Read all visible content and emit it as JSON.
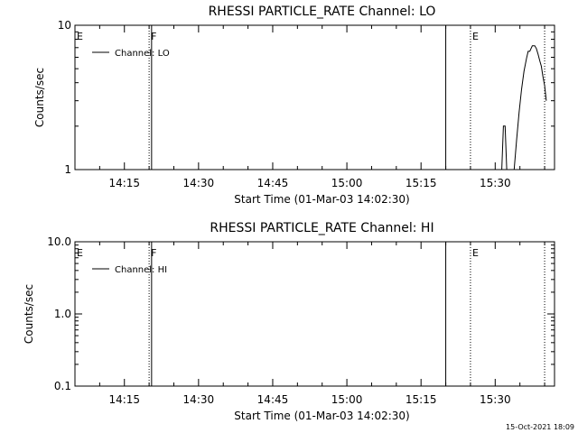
{
  "chart_data": [
    {
      "type": "line",
      "title": "RHESSI PARTICLE_RATE Channel: LO",
      "xlabel": "Start Time (01-Mar-03 14:02:30)",
      "ylabel": "Counts/sec",
      "y_scale": "log",
      "ylim": [
        1,
        10
      ],
      "y_ticks": [
        {
          "value": 1,
          "label": "1"
        },
        {
          "value": 10,
          "label": "10"
        }
      ],
      "xlim": [
        "14:05",
        "15:42"
      ],
      "x_ticks": [
        "14:15",
        "14:30",
        "14:45",
        "15:00",
        "15:15",
        "15:30"
      ],
      "legend": {
        "placement": "top-left",
        "label": "Channel: LO"
      },
      "series": [
        {
          "name": "Channel: LO",
          "x": [
            "15:31:00",
            "15:31:20",
            "15:31:40",
            "15:32:00",
            "15:32:20",
            "15:32:40",
            "15:33:30",
            "15:33:50",
            "15:34:20",
            "15:34:50",
            "15:35:20",
            "15:35:50",
            "15:36:20",
            "15:36:40",
            "15:37:00",
            "15:37:30",
            "15:38:00",
            "15:38:20",
            "15:38:40",
            "15:39:00",
            "15:39:20",
            "15:39:40",
            "15:40:00",
            "15:40:20"
          ],
          "values": [
            1.0,
            1.0,
            2.0,
            2.0,
            1.0,
            1.0,
            1.0,
            1.0,
            1.6,
            2.5,
            3.6,
            4.8,
            5.9,
            6.6,
            6.6,
            7.2,
            7.2,
            6.9,
            6.3,
            5.7,
            5.2,
            4.4,
            3.8,
            3.0
          ]
        }
      ],
      "markers": [
        {
          "time": "14:05",
          "label": "E",
          "style": "dotted"
        },
        {
          "time": "14:20",
          "label": "F",
          "style": "dotted"
        },
        {
          "time": "14:20:30",
          "label": "",
          "style": "solid"
        },
        {
          "time": "15:20",
          "label": "",
          "style": "solid"
        },
        {
          "time": "15:25",
          "label": "E",
          "style": "dotted"
        },
        {
          "time": "15:40",
          "label": "",
          "style": "dotted"
        }
      ]
    },
    {
      "type": "line",
      "title": "RHESSI PARTICLE_RATE Channel: HI",
      "xlabel": "Start Time (01-Mar-03 14:02:30)",
      "ylabel": "Counts/sec",
      "y_scale": "log",
      "ylim": [
        0.1,
        10
      ],
      "y_ticks": [
        {
          "value": 0.1,
          "label": "0.1"
        },
        {
          "value": 1,
          "label": "1.0"
        },
        {
          "value": 10,
          "label": "10.0"
        }
      ],
      "xlim": [
        "14:05",
        "15:42"
      ],
      "x_ticks": [
        "14:15",
        "14:30",
        "14:45",
        "15:00",
        "15:15",
        "15:30"
      ],
      "legend": {
        "placement": "top-left",
        "label": "Channel: HI"
      },
      "series": [
        {
          "name": "Channel: HI",
          "x": [],
          "values": []
        }
      ],
      "markers": [
        {
          "time": "14:05",
          "label": "E",
          "style": "dotted"
        },
        {
          "time": "14:20",
          "label": "F",
          "style": "dotted"
        },
        {
          "time": "14:20:30",
          "label": "",
          "style": "solid"
        },
        {
          "time": "15:20",
          "label": "",
          "style": "solid"
        },
        {
          "time": "15:25",
          "label": "E",
          "style": "dotted"
        },
        {
          "time": "15:40",
          "label": "",
          "style": "dotted"
        }
      ]
    }
  ],
  "footer": {
    "timestamp": "15-Oct-2021 18:09"
  }
}
